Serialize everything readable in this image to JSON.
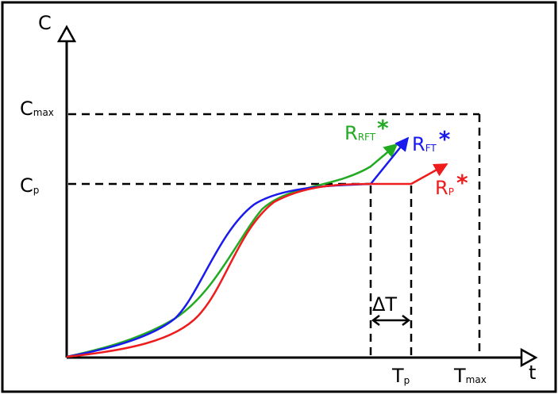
{
  "axes": {
    "y_label": "C",
    "x_label": "t"
  },
  "levels": {
    "c_max": {
      "main": "C",
      "sub": "max"
    },
    "c_p": {
      "main": "C",
      "sub": "p"
    }
  },
  "times": {
    "t_p": {
      "main": "T",
      "sub": "p"
    },
    "t_max": {
      "main": "T",
      "sub": "max"
    },
    "delta_t": "ΔT"
  },
  "curves": [
    {
      "id": "rft",
      "main": "R",
      "sub": "RFT",
      "star": "*",
      "color": "#22aa22"
    },
    {
      "id": "ft",
      "main": "R",
      "sub": "FT",
      "star": "*",
      "color": "#1a1aee"
    },
    {
      "id": "p",
      "main": "R",
      "sub": "P",
      "star": "*",
      "color": "#ee1c1c"
    }
  ]
}
